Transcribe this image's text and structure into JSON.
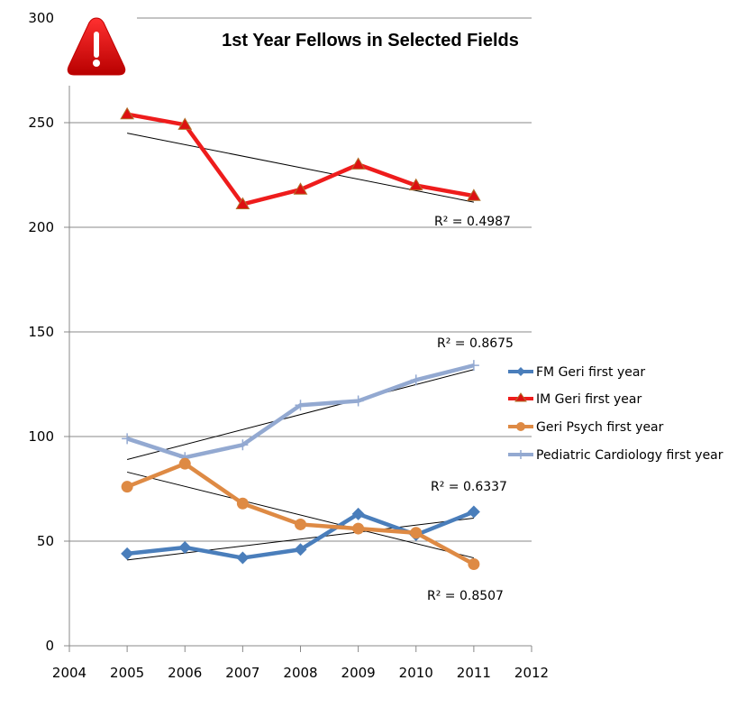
{
  "chart_data": {
    "type": "line",
    "title": "1st Year Fellows in Selected Fields",
    "xlabel": "",
    "ylabel": "",
    "x": [
      2005,
      2006,
      2007,
      2008,
      2009,
      2010,
      2011
    ],
    "xlim": [
      2004,
      2012
    ],
    "xticks": [
      "2004",
      "2005",
      "2006",
      "2007",
      "2008",
      "2009",
      "2010",
      "2011",
      "2012"
    ],
    "ylim": [
      0,
      300
    ],
    "yticks": [
      "0",
      "50",
      "100",
      "150",
      "200",
      "250",
      "300"
    ],
    "grid": true,
    "legend_position": "right",
    "series": [
      {
        "name": "FM Geri first year",
        "color": "#4a7ebb",
        "marker": "diamond",
        "values": [
          44,
          47,
          42,
          46,
          63,
          53,
          64
        ],
        "trendline": {
          "type": "linear",
          "r2_label": "R² = 0.6337",
          "start": 41,
          "end": 61
        }
      },
      {
        "name": "IM Geri first year",
        "color": "#ee1c1c",
        "marker": "triangle",
        "values": [
          254,
          249,
          211,
          218,
          230,
          220,
          215
        ],
        "trendline": {
          "type": "linear",
          "r2_label": "R² = 0.4987",
          "start": 245,
          "end": 212
        }
      },
      {
        "name": "Geri Psych first year",
        "color": "#de8a44",
        "marker": "circle",
        "values": [
          76,
          87,
          68,
          58,
          56,
          54,
          39
        ],
        "trendline": {
          "type": "linear",
          "r2_label": "R² = 0.8507",
          "start": 83,
          "end": 42
        }
      },
      {
        "name": "Pediatric Cardiology first year",
        "color": "#93a9d1",
        "marker": "plus",
        "values": [
          99,
          90,
          96,
          115,
          117,
          127,
          134
        ],
        "trendline": {
          "type": "linear",
          "r2_label": "R² = 0.8675",
          "start": 89,
          "end": 132
        }
      }
    ],
    "annotations": [
      "R² = 0.4987",
      "R² = 0.8675",
      "R² = 0.6337",
      "R² = 0.8507"
    ]
  },
  "header": {
    "icon": "warning-icon",
    "icon_color": "#e30613"
  }
}
